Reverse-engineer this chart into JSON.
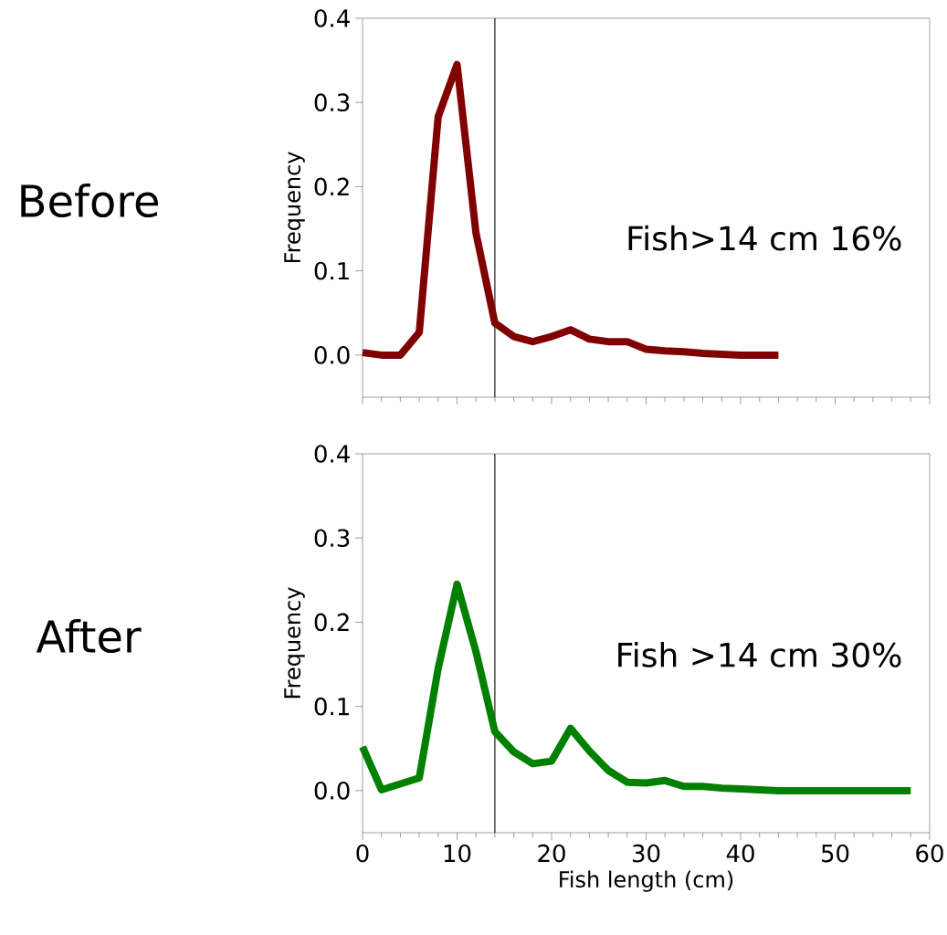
{
  "chart_data": [
    {
      "type": "line",
      "title": "Before",
      "ylabel": "Frequency",
      "annotations": [
        "Fish>14 cm  16%"
      ],
      "tick_labels": "y",
      "x": [
        0,
        2,
        4,
        6,
        8,
        10,
        12,
        14,
        16,
        18,
        20,
        22,
        24,
        26,
        28,
        30,
        32,
        34,
        36,
        38,
        40,
        42,
        44
      ],
      "values": [
        0.003,
        0.0,
        0.0,
        0.027,
        0.283,
        0.345,
        0.145,
        0.038,
        0.022,
        0.016,
        0.022,
        0.03,
        0.019,
        0.016,
        0.016,
        0.007,
        0.005,
        0.004,
        0.002,
        0.001,
        0.0,
        0.0,
        0.0
      ],
      "color": "#800000",
      "xlim": [
        0,
        60
      ],
      "xticks": [
        0,
        10,
        20,
        30,
        40,
        50,
        60
      ],
      "ylim": [
        -0.05,
        0.4
      ],
      "yticks": [
        {
          "value": 0,
          "label": "0.0"
        },
        {
          "value": 0.1,
          "label": "0.1"
        },
        {
          "value": 0.2,
          "label": "0.2"
        },
        {
          "value": 0.3,
          "label": "0.3"
        },
        {
          "value": 0.4,
          "label": "0.4"
        }
      ],
      "ref_lines": [
        {
          "axis": "x",
          "value": 14,
          "color": "#000000"
        }
      ]
    },
    {
      "type": "line",
      "title": "After",
      "xlabel": "Fish length (cm)",
      "ylabel": "Frequency",
      "annotations": [
        "Fish >14 cm 30%"
      ],
      "x": [
        0,
        2,
        4,
        6,
        8,
        10,
        12,
        14,
        16,
        18,
        20,
        22,
        24,
        26,
        28,
        30,
        32,
        34,
        36,
        38,
        40,
        42,
        44,
        46,
        48,
        50,
        52,
        54,
        56,
        58
      ],
      "values": [
        0.052,
        0.001,
        0.008,
        0.015,
        0.145,
        0.245,
        0.165,
        0.07,
        0.046,
        0.032,
        0.035,
        0.074,
        0.047,
        0.024,
        0.01,
        0.009,
        0.012,
        0.005,
        0.005,
        0.003,
        0.002,
        0.001,
        0.0,
        0.0,
        0.0,
        0.0,
        0.0,
        0.0,
        0.0,
        0.0
      ],
      "color": "#008000",
      "xlim": [
        0,
        60
      ],
      "xticks": [
        0,
        10,
        20,
        30,
        40,
        50,
        60
      ],
      "ylim": [
        -0.05,
        0.4
      ],
      "yticks": [
        {
          "value": 0,
          "label": "0.0"
        },
        {
          "value": 0.1,
          "label": "0.1"
        },
        {
          "value": 0.2,
          "label": "0.2"
        },
        {
          "value": 0.3,
          "label": "0.3"
        },
        {
          "value": 0.4,
          "label": "0.4"
        }
      ],
      "ref_lines": [
        {
          "axis": "x",
          "value": 14,
          "color": "#000000"
        }
      ]
    }
  ]
}
